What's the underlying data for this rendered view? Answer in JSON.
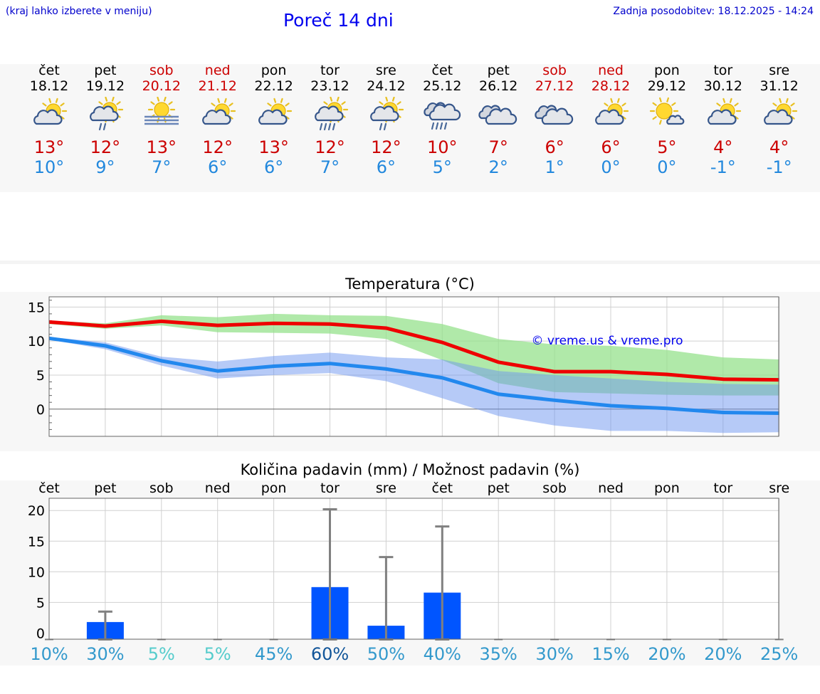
{
  "header": {
    "location_hint": "(kraj lahko izberete v meniju)",
    "title": "Poreč 14 dni",
    "updated": "Zadnja posodobitev: 18.12.2025 - 14:24"
  },
  "colors": {
    "max_temp": "#cc0000",
    "min_temp": "#2288dd",
    "precip_bar": "#0055ff",
    "link_blue": "#0000ee"
  },
  "days": [
    {
      "name": "čet",
      "date": "18.12",
      "weekend": false,
      "icon": "partly-cloudy-icon",
      "max": "13°",
      "min": "10°"
    },
    {
      "name": "pet",
      "date": "19.12",
      "weekend": false,
      "icon": "partly-cloudy-rain-icon",
      "max": "12°",
      "min": "9°"
    },
    {
      "name": "sob",
      "date": "20.12",
      "weekend": true,
      "icon": "sun-fog-icon",
      "max": "13°",
      "min": "7°"
    },
    {
      "name": "ned",
      "date": "21.12",
      "weekend": true,
      "icon": "partly-cloudy-icon",
      "max": "12°",
      "min": "6°"
    },
    {
      "name": "pon",
      "date": "22.12",
      "weekend": false,
      "icon": "partly-cloudy-icon",
      "max": "13°",
      "min": "6°"
    },
    {
      "name": "tor",
      "date": "23.12",
      "weekend": false,
      "icon": "partly-cloudy-heavy-rain-icon",
      "max": "12°",
      "min": "7°"
    },
    {
      "name": "sre",
      "date": "24.12",
      "weekend": false,
      "icon": "partly-cloudy-rain-icon",
      "max": "12°",
      "min": "6°"
    },
    {
      "name": "čet",
      "date": "25.12",
      "weekend": false,
      "icon": "cloudy-heavy-rain-icon",
      "max": "10°",
      "min": "5°"
    },
    {
      "name": "pet",
      "date": "26.12",
      "weekend": false,
      "icon": "cloudy-icon",
      "max": "7°",
      "min": "2°"
    },
    {
      "name": "sob",
      "date": "27.12",
      "weekend": true,
      "icon": "cloudy-icon",
      "max": "6°",
      "min": "1°"
    },
    {
      "name": "ned",
      "date": "28.12",
      "weekend": true,
      "icon": "partly-cloudy-icon",
      "max": "6°",
      "min": "0°"
    },
    {
      "name": "pon",
      "date": "29.12",
      "weekend": false,
      "icon": "mostly-sunny-icon",
      "max": "5°",
      "min": "0°"
    },
    {
      "name": "tor",
      "date": "30.12",
      "weekend": false,
      "icon": "partly-cloudy-icon",
      "max": "4°",
      "min": "-1°"
    },
    {
      "name": "sre",
      "date": "31.12",
      "weekend": false,
      "icon": "partly-cloudy-icon",
      "max": "4°",
      "min": "-1°"
    }
  ],
  "chart_data": [
    {
      "type": "line",
      "title": "Temperatura (°C)",
      "watermark": "© vreme.us & vreme.pro",
      "x": [
        0,
        1,
        2,
        3,
        4,
        5,
        6,
        7,
        8,
        9,
        10,
        11,
        12,
        13
      ],
      "ylim": [
        -4,
        16.5
      ],
      "yticks": [
        0,
        5,
        10,
        15
      ],
      "series": [
        {
          "name": "max",
          "color": "#ee0000",
          "values": [
            12.8,
            12.2,
            12.9,
            12.3,
            12.6,
            12.5,
            11.9,
            9.8,
            6.9,
            5.5,
            5.5,
            5.1,
            4.4,
            4.3
          ],
          "band_low": [
            12.5,
            11.8,
            12.3,
            11.3,
            11.2,
            11.1,
            10.3,
            7.2,
            3.8,
            2.5,
            2.3,
            2.1,
            2.0,
            2.0
          ],
          "band_high": [
            13.0,
            12.6,
            13.8,
            13.5,
            14.0,
            13.8,
            13.7,
            12.5,
            10.3,
            9.5,
            9.3,
            8.7,
            7.6,
            7.3
          ]
        },
        {
          "name": "min",
          "color": "#2288ee",
          "values": [
            10.4,
            9.3,
            7.1,
            5.6,
            6.3,
            6.7,
            5.9,
            4.6,
            2.2,
            1.3,
            0.5,
            0.1,
            -0.5,
            -0.6
          ],
          "band_low": [
            10.2,
            8.8,
            6.4,
            4.5,
            5.0,
            5.3,
            4.1,
            1.6,
            -1.0,
            -2.4,
            -3.2,
            -3.2,
            -3.5,
            -3.4
          ],
          "band_high": [
            10.6,
            9.8,
            7.7,
            7.0,
            7.8,
            8.3,
            7.6,
            7.3,
            5.6,
            5.0,
            4.5,
            4.0,
            3.7,
            3.6
          ]
        }
      ]
    },
    {
      "type": "bar",
      "title": "Količina padavin (mm) / Možnost padavin (%)",
      "categories": [
        "čet",
        "pet",
        "sob",
        "ned",
        "pon",
        "tor",
        "sre",
        "čet",
        "pet",
        "sob",
        "ned",
        "pon",
        "tor",
        "sre"
      ],
      "ylim": [
        -1,
        22
      ],
      "yticks": [
        0,
        5,
        10,
        15,
        20
      ],
      "values": [
        0,
        1.8,
        0,
        0,
        0,
        7.5,
        1.2,
        6.6,
        0,
        0,
        0,
        0,
        0,
        0
      ],
      "error_high": [
        0,
        3.5,
        0,
        0,
        0,
        20.2,
        12.4,
        17.4,
        0,
        0,
        0,
        0,
        0,
        0
      ],
      "probability": [
        "10%",
        "30%",
        "5%",
        "5%",
        "45%",
        "60%",
        "50%",
        "40%",
        "35%",
        "30%",
        "15%",
        "20%",
        "20%",
        "25%"
      ],
      "probability_colors": [
        "#3399cc",
        "#3399cc",
        "#55cccc",
        "#55cccc",
        "#3399cc",
        "#115599",
        "#3399cc",
        "#3399cc",
        "#3399cc",
        "#3399cc",
        "#3399cc",
        "#3399cc",
        "#3399cc",
        "#3399cc"
      ]
    }
  ]
}
